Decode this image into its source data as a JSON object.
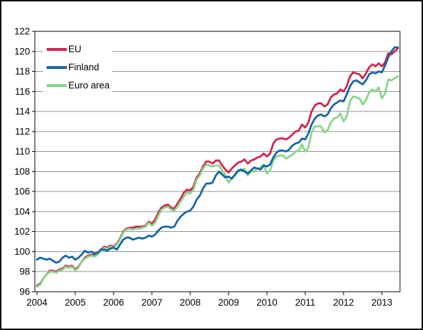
{
  "chart_data": {
    "type": "line",
    "title": "",
    "frequency": "monthly",
    "x_start": "2004-01",
    "x_end": "2013-06",
    "xlabel": "",
    "ylabel": "",
    "ylim": [
      96,
      122
    ],
    "ytick_step": 2,
    "grid": true,
    "legend_position": "top-left",
    "x_tick_labels": [
      "2004",
      "2005",
      "2006",
      "2007",
      "2008",
      "2009",
      "2010",
      "2011",
      "2012",
      "2013"
    ],
    "y_tick_labels": [
      "96",
      "98",
      "100",
      "102",
      "104",
      "106",
      "108",
      "110",
      "112",
      "114",
      "116",
      "118",
      "120",
      "122"
    ],
    "series": [
      {
        "name": "EU",
        "color": "#d2234b",
        "values": [
          96.6,
          96.8,
          97.3,
          97.7,
          98.1,
          98.1,
          98.0,
          98.2,
          98.3,
          98.6,
          98.5,
          98.6,
          98.2,
          98.5,
          99.0,
          99.4,
          99.6,
          99.7,
          99.6,
          99.8,
          100.2,
          100.5,
          100.4,
          100.6,
          100.5,
          100.8,
          101.3,
          102.0,
          102.3,
          102.4,
          102.4,
          102.5,
          102.5,
          102.5,
          102.6,
          103.0,
          102.8,
          103.2,
          103.9,
          104.4,
          104.6,
          104.7,
          104.4,
          104.3,
          104.8,
          105.3,
          105.9,
          106.2,
          106.1,
          106.5,
          107.4,
          107.8,
          108.5,
          109.0,
          109.0,
          108.8,
          109.1,
          109.1,
          108.6,
          108.2,
          107.9,
          108.3,
          108.6,
          108.9,
          109.0,
          109.2,
          108.8,
          109.1,
          109.2,
          109.4,
          109.5,
          109.8,
          109.5,
          109.8,
          110.8,
          111.2,
          111.3,
          111.3,
          111.2,
          111.4,
          111.7,
          112.0,
          112.1,
          112.7,
          112.4,
          112.9,
          114.0,
          114.6,
          114.8,
          114.8,
          114.5,
          114.7,
          115.4,
          115.7,
          115.8,
          116.2,
          116.0,
          116.5,
          117.5,
          117.9,
          117.8,
          117.7,
          117.3,
          117.8,
          118.4,
          118.7,
          118.5,
          118.8,
          118.5,
          118.9,
          119.8,
          119.7,
          120.0,
          120.3
        ]
      },
      {
        "name": "Finland",
        "color": "#1464a5",
        "values": [
          99.2,
          99.4,
          99.3,
          99.2,
          99.3,
          99.1,
          98.9,
          99.0,
          99.4,
          99.6,
          99.4,
          99.5,
          99.2,
          99.4,
          99.7,
          100.1,
          99.9,
          100.0,
          99.8,
          99.9,
          100.2,
          100.2,
          100.1,
          100.3,
          100.4,
          100.2,
          100.7,
          101.2,
          101.4,
          101.4,
          101.2,
          101.3,
          101.4,
          101.3,
          101.4,
          101.6,
          101.5,
          101.7,
          102.1,
          102.4,
          102.5,
          102.5,
          102.4,
          102.5,
          103.1,
          103.5,
          103.8,
          104.0,
          104.1,
          104.5,
          105.2,
          105.6,
          106.3,
          106.8,
          106.8,
          106.9,
          107.6,
          108.0,
          107.7,
          107.4,
          107.5,
          107.3,
          107.7,
          108.1,
          108.2,
          108.0,
          107.8,
          108.1,
          108.4,
          108.3,
          108.2,
          108.6,
          108.5,
          108.7,
          109.4,
          109.9,
          110.1,
          110.1,
          110.0,
          110.2,
          110.6,
          110.8,
          110.9,
          111.3,
          111.2,
          111.8,
          112.7,
          113.3,
          113.6,
          113.7,
          113.5,
          113.7,
          114.3,
          114.7,
          114.9,
          115.1,
          115.0,
          115.7,
          116.5,
          117.0,
          117.1,
          116.9,
          116.7,
          117.1,
          117.7,
          117.9,
          117.8,
          118.0,
          117.9,
          118.6,
          119.4,
          120.0,
          120.4,
          120.4
        ]
      },
      {
        "name": "Euro area",
        "color": "#86d588",
        "values": [
          96.5,
          96.7,
          97.3,
          97.7,
          98.0,
          98.0,
          97.9,
          98.1,
          98.2,
          98.5,
          98.4,
          98.5,
          98.1,
          98.4,
          99.0,
          99.3,
          99.5,
          99.6,
          99.5,
          99.7,
          100.1,
          100.4,
          100.3,
          100.5,
          100.4,
          100.7,
          101.2,
          101.9,
          102.2,
          102.3,
          102.2,
          102.3,
          102.3,
          102.4,
          102.5,
          102.9,
          102.6,
          102.9,
          103.6,
          104.2,
          104.4,
          104.5,
          104.2,
          104.1,
          104.5,
          105.0,
          105.5,
          105.9,
          105.8,
          106.2,
          107.2,
          107.6,
          108.3,
          108.7,
          108.6,
          108.5,
          108.6,
          108.6,
          108.1,
          107.7,
          106.9,
          107.3,
          107.6,
          108.0,
          108.1,
          108.3,
          107.6,
          108.0,
          108.0,
          108.3,
          108.4,
          108.7,
          107.8,
          108.1,
          109.1,
          109.5,
          109.6,
          109.6,
          109.3,
          109.5,
          109.7,
          110.0,
          110.1,
          110.7,
          110.0,
          110.4,
          111.9,
          112.5,
          112.5,
          112.5,
          111.9,
          112.1,
          112.9,
          113.3,
          113.4,
          113.8,
          113.0,
          113.5,
          115.0,
          115.5,
          115.4,
          115.3,
          114.7,
          115.1,
          115.9,
          116.2,
          116.0,
          116.4,
          115.3,
          115.8,
          117.2,
          117.1,
          117.3,
          117.5
        ]
      }
    ],
    "style": {
      "gridline_color": "#909090",
      "axis_color": "#000000",
      "background": "#ffffff",
      "line_width": 2.8
    }
  }
}
